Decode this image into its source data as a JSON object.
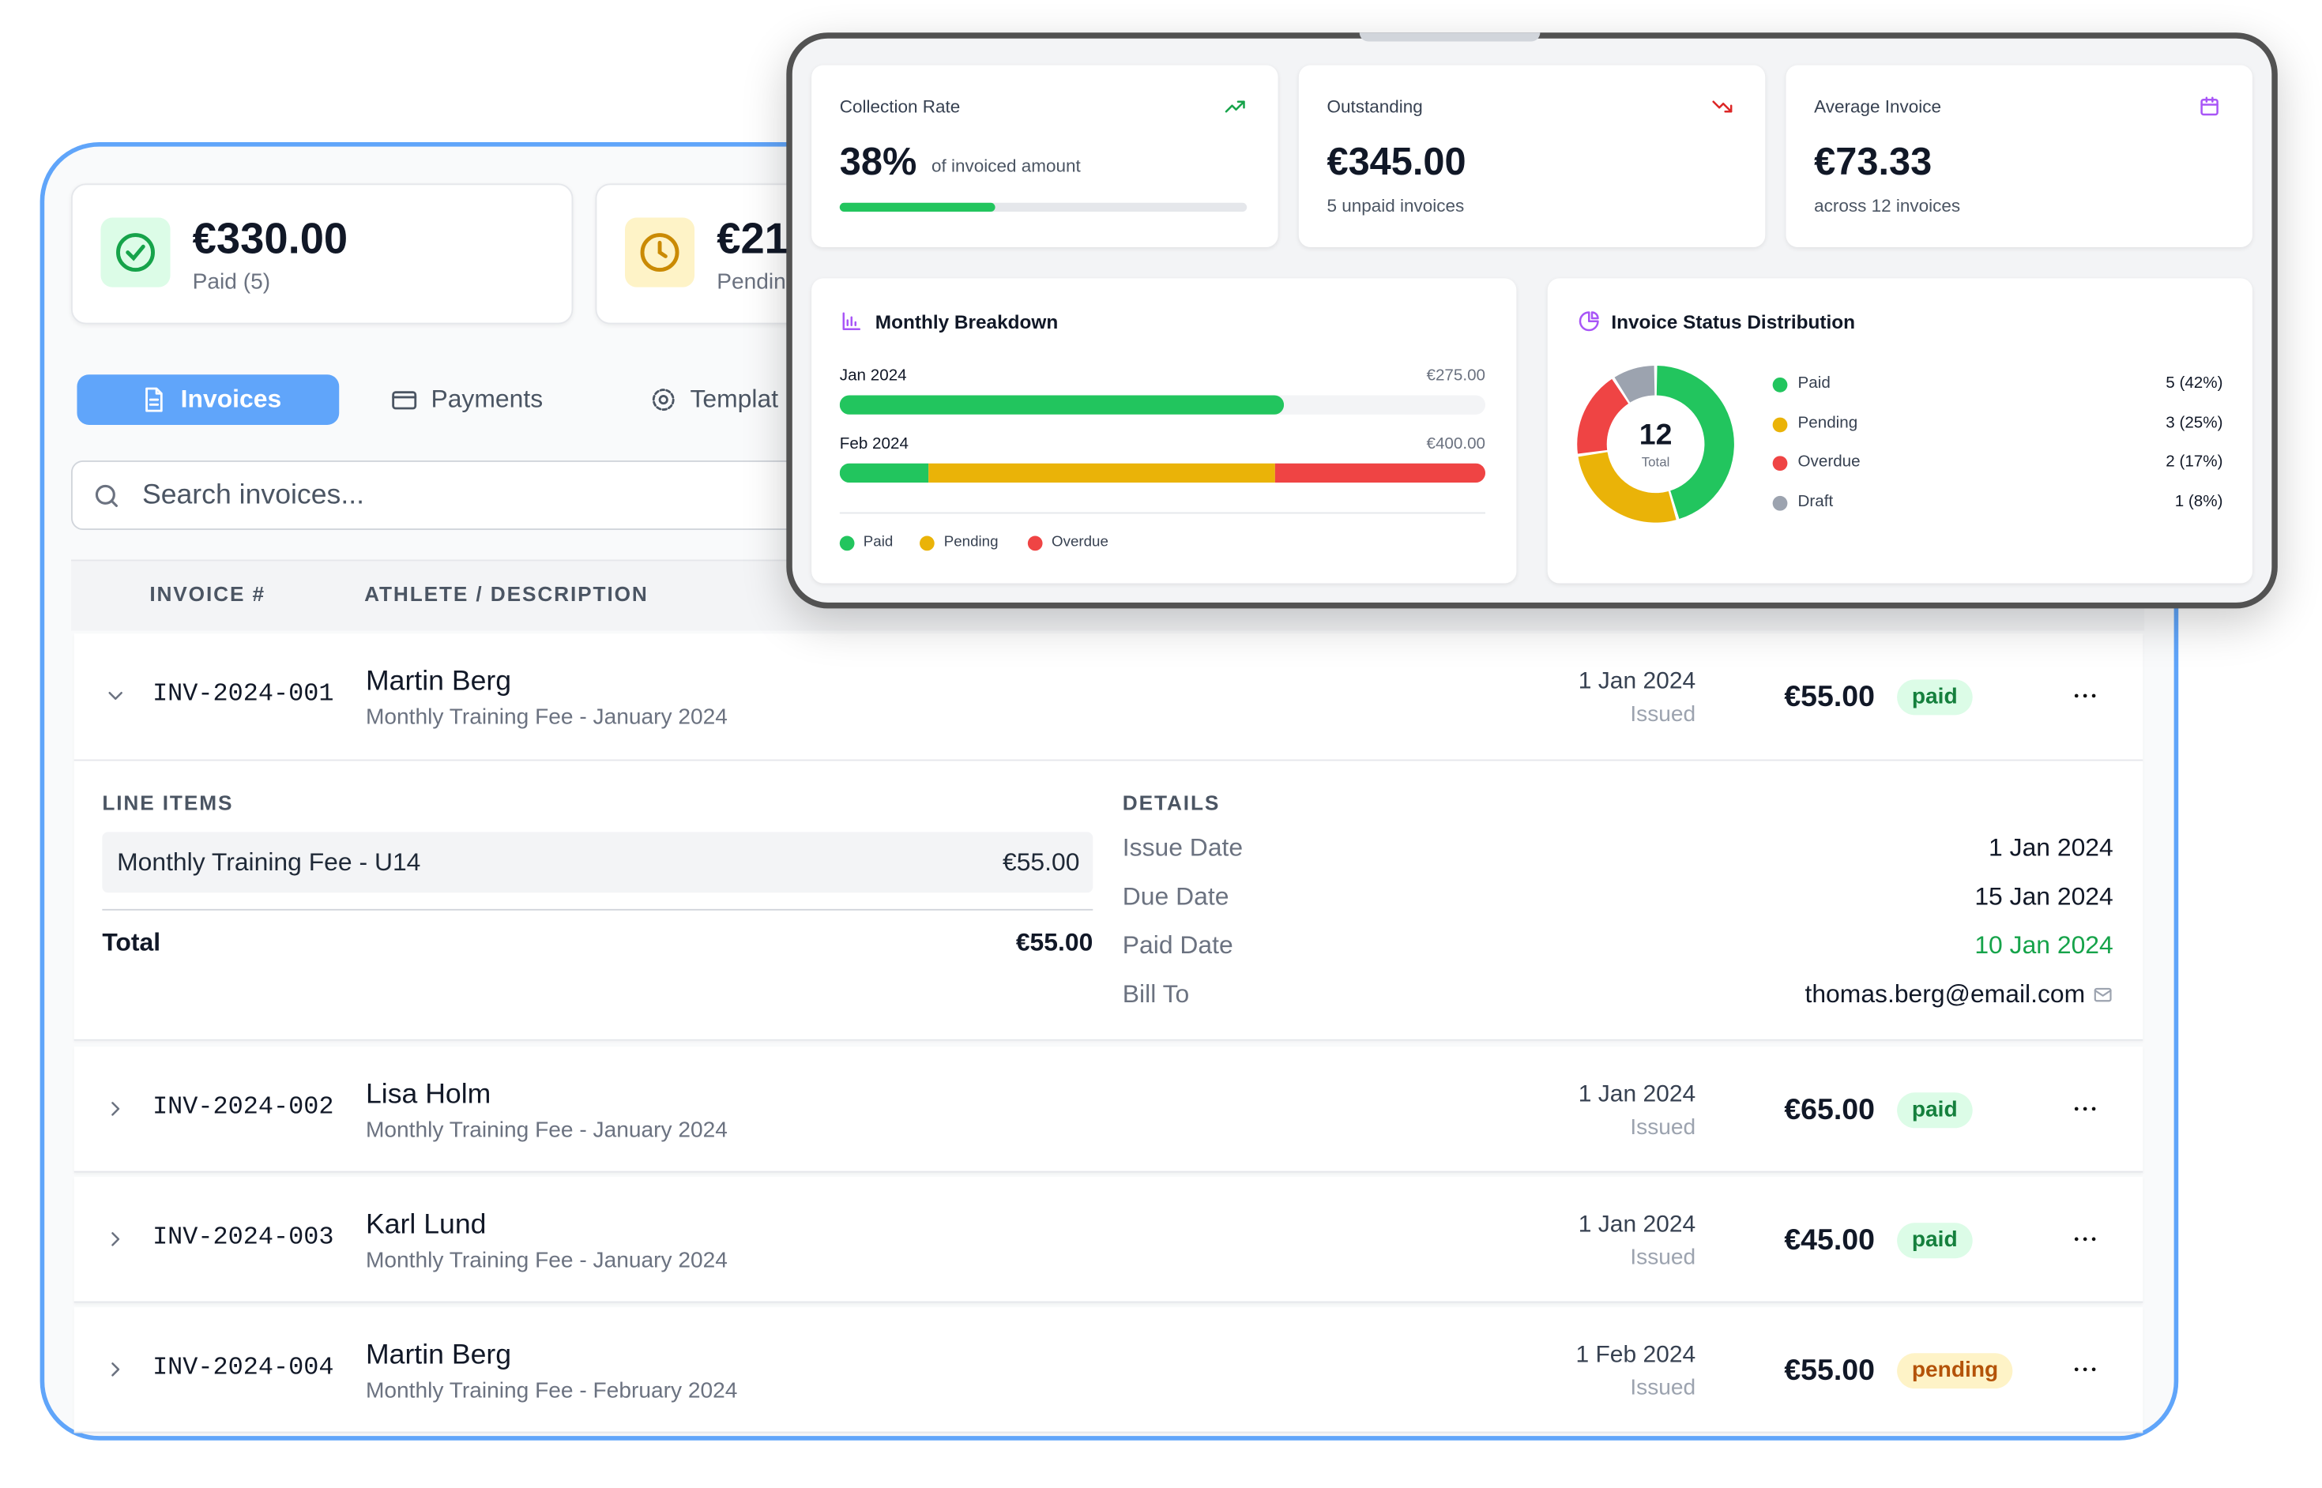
{
  "invoices_panel": {
    "stats": [
      {
        "amount": "€330.00",
        "label": "Paid (5)"
      },
      {
        "amount": "€21",
        "label": "Pendin"
      }
    ],
    "tabs": [
      "Invoices",
      "Payments",
      "Templat"
    ],
    "search_placeholder": "Search invoices...",
    "columns": [
      "INVOICE #",
      "ATHLETE / DESCRIPTION"
    ],
    "rows": [
      {
        "id": "INV-2024-001",
        "name": "Martin Berg",
        "description": "Monthly Training Fee - January 2024",
        "date": "1 Jan 2024",
        "date_note": "Issued",
        "amount": "€55.00",
        "status": "paid"
      },
      {
        "id": "INV-2024-002",
        "name": "Lisa Holm",
        "description": "Monthly Training Fee - January 2024",
        "date": "1 Jan 2024",
        "date_note": "Issued",
        "amount": "€65.00",
        "status": "paid"
      },
      {
        "id": "INV-2024-003",
        "name": "Karl Lund",
        "description": "Monthly Training Fee - January 2024",
        "date": "1 Jan 2024",
        "date_note": "Issued",
        "amount": "€45.00",
        "status": "paid"
      },
      {
        "id": "INV-2024-004",
        "name": "Martin Berg",
        "description": "Monthly Training Fee - February 2024",
        "date": "1 Feb 2024",
        "date_note": "Issued",
        "amount": "€55.00",
        "status": "pending"
      }
    ],
    "expanded": {
      "line_items_title": "LINE ITEMS",
      "items": [
        {
          "name": "Monthly Training Fee - U14",
          "amount": "€55.00"
        }
      ],
      "total_label": "Total",
      "total": "€55.00",
      "details_title": "DETAILS",
      "details": [
        {
          "label": "Issue Date",
          "value": "1 Jan 2024"
        },
        {
          "label": "Due Date",
          "value": "15 Jan 2024"
        },
        {
          "label": "Paid Date",
          "value": "10 Jan 2024"
        },
        {
          "label": "Bill To",
          "value": "thomas.berg@email.com"
        }
      ]
    }
  },
  "analytics_panel": {
    "kpis": [
      {
        "title": "Collection Rate",
        "value": {
          "value": 38,
          "label": "38%"
        },
        "note": "of invoiced amount",
        "color": "#22c55e"
      },
      {
        "title": "Outstanding",
        "value": "€345.00",
        "note": "5 unpaid invoices"
      },
      {
        "title": "Average Invoice",
        "value": "€73.33",
        "note": "across 12 invoices"
      }
    ],
    "monthly_breakdown": {
      "title": "Monthly Breakdown",
      "categories": [
        "Jan 2024",
        "Feb 2024"
      ],
      "totals": [
        "€275.00",
        "€400.00"
      ],
      "series": [
        {
          "name": "Paid",
          "color": "#22c55e",
          "values": [
            275,
            55
          ]
        },
        {
          "name": "Pending",
          "color": "#eab308",
          "values": [
            0,
            215
          ]
        },
        {
          "name": "Overdue",
          "color": "#ef4444",
          "values": [
            0,
            130
          ]
        }
      ]
    },
    "status_distribution": {
      "title": "Invoice Status Distribution",
      "total": 12,
      "total_label": "Total",
      "series": [
        {
          "name": "Paid",
          "color": "#22c55e",
          "value": 5,
          "value_label": "5 (42%)"
        },
        {
          "name": "Pending",
          "color": "#eab308",
          "value": 3,
          "value_label": "3 (25%)"
        },
        {
          "name": "Overdue",
          "color": "#ef4444",
          "value": 2,
          "value_label": "2 (17%)"
        },
        {
          "name": "Draft",
          "color": "#9ca3af",
          "value": 1,
          "value_label": "1 (8%)"
        }
      ]
    }
  }
}
